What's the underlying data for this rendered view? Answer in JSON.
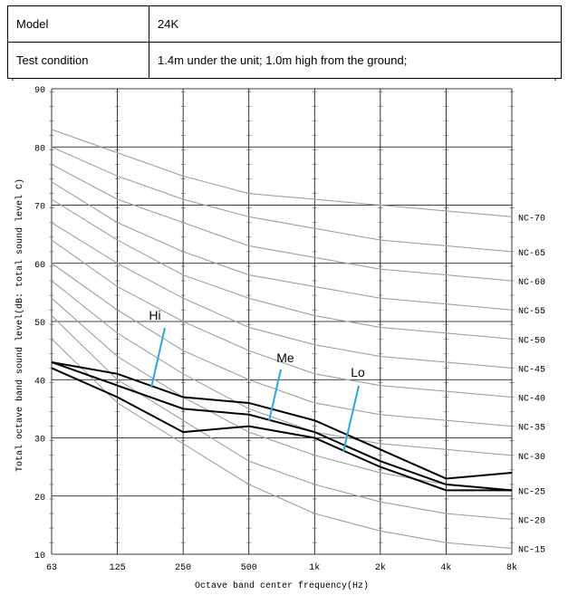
{
  "table": {
    "rows": [
      {
        "label": "Model",
        "value": "24K"
      },
      {
        "label": "Test condition",
        "value": "1.4m under the unit; 1.0m high from the ground;"
      }
    ]
  },
  "chart_data": {
    "type": "line",
    "title": "",
    "xlabel": "Octave band center frequency(Hz)",
    "ylabel": "Total octave band sound level(dB: total sound level C)",
    "x": [
      "63",
      "125",
      "250",
      "500",
      "1k",
      "2k",
      "4k",
      "8k"
    ],
    "xticklabels": [
      "63",
      "125",
      "250",
      "500",
      "1k",
      "2k",
      "4k",
      "8k"
    ],
    "ylim": [
      10,
      90
    ],
    "yticks": [
      10,
      20,
      30,
      40,
      50,
      60,
      70,
      80,
      90
    ],
    "grid": true,
    "nc_curves": [
      {
        "name": "NC-70",
        "values": [
          83,
          79,
          75,
          72,
          71,
          70,
          69,
          68
        ]
      },
      {
        "name": "NC-65",
        "values": [
          80,
          75,
          71,
          68,
          66,
          64,
          63,
          62
        ]
      },
      {
        "name": "NC-60",
        "values": [
          77,
          71,
          67,
          63,
          61,
          59,
          58,
          57
        ]
      },
      {
        "name": "NC-55",
        "values": [
          74,
          67,
          62,
          58,
          56,
          54,
          53,
          52
        ]
      },
      {
        "name": "NC-50",
        "values": [
          71,
          64,
          58,
          54,
          51,
          49,
          48,
          47
        ]
      },
      {
        "name": "NC-45",
        "values": [
          67,
          60,
          54,
          49,
          46,
          44,
          43,
          42
        ]
      },
      {
        "name": "NC-40",
        "values": [
          64,
          56,
          50,
          45,
          41,
          39,
          38,
          37
        ]
      },
      {
        "name": "NC-35",
        "values": [
          60,
          52,
          45,
          40,
          36,
          34,
          33,
          32
        ]
      },
      {
        "name": "NC-30",
        "values": [
          57,
          48,
          41,
          35,
          31,
          29,
          28,
          27
        ]
      },
      {
        "name": "NC-25",
        "values": [
          54,
          44,
          37,
          31,
          27,
          24,
          22,
          21
        ]
      },
      {
        "name": "NC-20",
        "values": [
          51,
          40,
          33,
          26,
          22,
          19,
          17,
          16
        ]
      },
      {
        "name": "NC-15",
        "values": [
          47,
          36,
          29,
          22,
          17,
          14,
          12,
          11
        ]
      }
    ],
    "series": [
      {
        "name": "Hi",
        "values": [
          43,
          41,
          37,
          36,
          33,
          28,
          23,
          24
        ]
      },
      {
        "name": "Me",
        "values": [
          43,
          39,
          35,
          34,
          31,
          26,
          22,
          21
        ]
      },
      {
        "name": "Lo",
        "values": [
          42,
          37,
          31,
          32,
          30,
          25,
          21,
          21
        ]
      }
    ],
    "annotation_color": "#29a8e0",
    "line_color": "#000000",
    "nc_color": "#a0a0a0"
  }
}
